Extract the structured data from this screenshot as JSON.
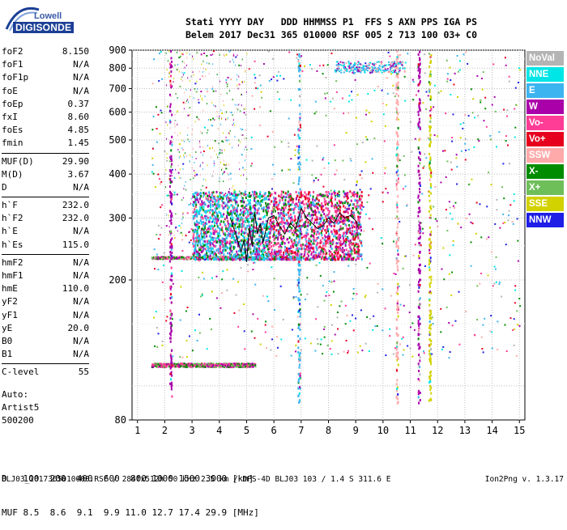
{
  "logo": {
    "top": "Lowell",
    "bottom": "DIGISONDE"
  },
  "header": {
    "line1": "Stati YYYY DAY   DDD HHMMSS P1  FFS S AXN PPS IGA PS",
    "line2": "Belem 2017 Dec31 365 010000 RSF 005 2 713 100 03+ C0"
  },
  "params": [
    [
      {
        "k": "foF2",
        "v": "8.150"
      },
      {
        "k": "foF1",
        "v": "N/A"
      },
      {
        "k": "foF1p",
        "v": "N/A"
      },
      {
        "k": "foE",
        "v": "N/A"
      },
      {
        "k": "foEp",
        "v": "0.37"
      },
      {
        "k": "fxI",
        "v": "8.60"
      },
      {
        "k": "foEs",
        "v": "4.85"
      },
      {
        "k": "fmin",
        "v": "1.45"
      }
    ],
    [
      {
        "k": "MUF(D)",
        "v": "29.90"
      },
      {
        "k": "M(D)",
        "v": "3.67"
      },
      {
        "k": "D",
        "v": "N/A"
      }
    ],
    [
      {
        "k": "h`F",
        "v": "232.0"
      },
      {
        "k": "h`F2",
        "v": "232.0"
      },
      {
        "k": "h`E",
        "v": "N/A"
      },
      {
        "k": "h`Es",
        "v": "115.0"
      }
    ],
    [
      {
        "k": "hmF2",
        "v": "N/A"
      },
      {
        "k": "hmF1",
        "v": "N/A"
      },
      {
        "k": "hmE",
        "v": "110.0"
      },
      {
        "k": "yF2",
        "v": "N/A"
      },
      {
        "k": "yF1",
        "v": "N/A"
      },
      {
        "k": "yE",
        "v": "20.0"
      },
      {
        "k": "B0",
        "v": "N/A"
      },
      {
        "k": "B1",
        "v": "N/A"
      }
    ],
    [
      {
        "k": "C-level",
        "v": "55"
      }
    ]
  ],
  "auto": {
    "line1": "Auto:",
    "line2": "Artist5",
    "line3": "500200"
  },
  "legend": [
    {
      "label": "NoVal",
      "color": "#b4b4b4"
    },
    {
      "label": "NNE",
      "color": "#00e6e6"
    },
    {
      "label": "E",
      "color": "#3cb4f0"
    },
    {
      "label": "W",
      "color": "#aa00aa"
    },
    {
      "label": "Vo-",
      "color": "#ff3c96"
    },
    {
      "label": "Vo+",
      "color": "#e6001e"
    },
    {
      "label": "SSW",
      "color": "#ffaaaa"
    },
    {
      "label": "X-",
      "color": "#008c00"
    },
    {
      "label": "X+",
      "color": "#6ebe5a"
    },
    {
      "label": "SSE",
      "color": "#d2d200"
    },
    {
      "label": "NNW",
      "color": "#1e1ee6"
    }
  ],
  "distance_muf": {
    "d_label": "D",
    "d_values": "100  200  400  600  800 1000 1500 3000",
    "d_unit": "[km]",
    "m_label": "MUF",
    "m_values": "8.5  8.6  9.1  9.9 11.0 12.7 17.4 29.9",
    "m_unit": "[MHz]"
  },
  "footer": {
    "left": "BLJ03_2017365010000.RSF / 284fx512h 50 kHz 2.5 km / DPS-4D BLJ03 103 / 1.4 S 311.6 E",
    "right": "Ion2Png v. 1.3.17"
  },
  "chart_data": {
    "type": "scatter",
    "xlabel": "",
    "ylabel": "",
    "xlim": [
      0.8,
      15.2
    ],
    "ylim": [
      80,
      900
    ],
    "y_scale": "log",
    "x_ticks": [
      1,
      2,
      3,
      4,
      5,
      6,
      7,
      8,
      9,
      10,
      11,
      12,
      13,
      14,
      15
    ],
    "y_ticks": [
      80,
      200,
      300,
      400,
      500,
      600,
      700,
      800,
      900
    ],
    "grid": true,
    "legend_position": "right",
    "trace_line": {
      "name": "",
      "x": [
        4.4,
        4.6,
        4.8,
        4.9,
        5.0,
        5.1,
        5.2,
        5.3,
        5.4,
        5.5,
        5.6,
        5.8,
        6.0,
        6.2,
        6.4,
        6.6,
        6.8,
        7.0,
        7.2,
        7.4,
        7.6,
        7.8,
        8.0,
        8.2,
        8.4,
        8.6,
        8.8,
        9.0,
        9.1
      ],
      "y": [
        300,
        270,
        240,
        260,
        225,
        280,
        250,
        310,
        270,
        290,
        255,
        300,
        305,
        285,
        270,
        290,
        280,
        320,
        300,
        290,
        280,
        285,
        300,
        290,
        310,
        300,
        305,
        295,
        280
      ]
    },
    "ordinary_F_trace": {
      "x_range": [
        1.5,
        5.3
      ],
      "y": 232
    },
    "Es_trace": {
      "x_range": [
        1.5,
        5.3
      ],
      "y": 115
    },
    "F_cluster": {
      "x_range": [
        3.0,
        9.2
      ],
      "y_range": [
        230,
        360
      ]
    },
    "upper_echo_cluster": {
      "x_range": [
        8.2,
        10.8
      ],
      "y_range": [
        780,
        840
      ]
    },
    "vertical_columns_x": [
      2.2,
      6.9,
      10.5,
      11.3,
      11.7
    ]
  }
}
